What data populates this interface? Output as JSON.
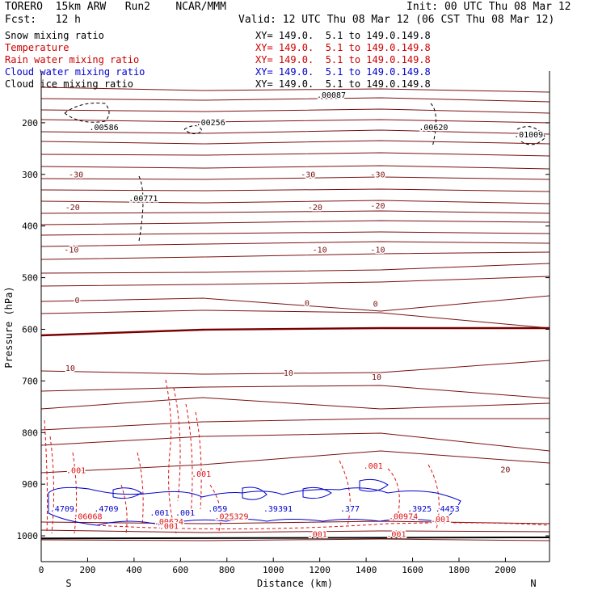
{
  "header": {
    "title_left": "TORERO  15km ARW   Run2    NCAR/MMM",
    "fcst": "Fcst:   12 h",
    "init": "Init: 00 UTC Thu 08 Mar 12",
    "valid": "Valid: 12 UTC Thu 08 Mar 12 (06 CST Thu 08 Mar 12)"
  },
  "legend": [
    {
      "name": "Snow mixing ratio",
      "xy": "XY= 149.0.  5.1 to 149.0.149.8",
      "color": "#000000"
    },
    {
      "name": "Temperature",
      "xy": "XY= 149.0.  5.1 to 149.0.149.8",
      "color": "#cc0000"
    },
    {
      "name": "Rain water mixing ratio",
      "xy": "XY= 149.0.  5.1 to 149.0.149.8",
      "color": "#cc0000"
    },
    {
      "name": "Cloud water mixing ratio",
      "xy": "XY= 149.0.  5.1 to 149.0.149.8",
      "color": "#0000cc"
    },
    {
      "name": "Cloud ice mixing ratio",
      "xy": "XY= 149.0.  5.1 to 149.0.149.8",
      "color": "#000000"
    }
  ],
  "colors": {
    "temperature": "#7a1010",
    "rain": "#dd1111",
    "cloud_water": "#0000cc",
    "ice": "#000000"
  },
  "chart_data": {
    "type": "line",
    "title": "",
    "xlabel": "Distance (km)",
    "ylabel": "Pressure (hPa)",
    "xlim": [
      0,
      2190
    ],
    "ylim": [
      1050,
      100
    ],
    "x_ticks": [
      0,
      200,
      400,
      600,
      800,
      1000,
      1200,
      1400,
      1600,
      1800,
      2000
    ],
    "y_ticks": [
      200,
      300,
      400,
      500,
      600,
      700,
      800,
      900,
      1000
    ],
    "end_labels": {
      "left": "S",
      "right": "N"
    },
    "temperature_contour_labels": [
      {
        "text": "-30",
        "x": 150,
        "p": 306
      },
      {
        "text": "-30",
        "x": 1150,
        "p": 306
      },
      {
        "text": "-30",
        "x": 1450,
        "p": 306
      },
      {
        "text": "-20",
        "x": 135,
        "p": 369
      },
      {
        "text": "-20",
        "x": 1180,
        "p": 369
      },
      {
        "text": "-20",
        "x": 1450,
        "p": 366
      },
      {
        "text": "-10",
        "x": 130,
        "p": 451
      },
      {
        "text": "-10",
        "x": 1200,
        "p": 451
      },
      {
        "text": "-10",
        "x": 1450,
        "p": 451
      },
      {
        "text": "0",
        "x": 155,
        "p": 549
      },
      {
        "text": "0",
        "x": 1145,
        "p": 555
      },
      {
        "text": "0",
        "x": 1440,
        "p": 556
      },
      {
        "text": "10",
        "x": 125,
        "p": 681
      },
      {
        "text": "10",
        "x": 1065,
        "p": 690
      },
      {
        "text": "10",
        "x": 1445,
        "p": 698
      },
      {
        "text": "20",
        "x": 2000,
        "p": 877
      }
    ],
    "snow_maxima": [
      {
        "text": ".00586",
        "x": 270,
        "p": 214
      },
      {
        "text": ".00256",
        "x": 730,
        "p": 205
      },
      {
        "text": ".00771",
        "x": 440,
        "p": 352
      },
      {
        "text": ".00087",
        "x": 1250,
        "p": 152
      },
      {
        "text": ".00620",
        "x": 1690,
        "p": 214
      },
      {
        "text": ".01009",
        "x": 2100,
        "p": 228
      }
    ],
    "rain_labels": [
      {
        "text": ".001",
        "x": 150,
        "p": 879
      },
      {
        "text": ".001",
        "x": 690,
        "p": 886
      },
      {
        "text": ".001",
        "x": 1430,
        "p": 870
      },
      {
        "text": ".06068",
        "x": 200,
        "p": 968
      },
      {
        "text": ".00624",
        "x": 550,
        "p": 978
      },
      {
        "text": ".025329",
        "x": 820,
        "p": 968
      },
      {
        "text": ".001",
        "x": 550,
        "p": 987
      },
      {
        "text": ".00974",
        "x": 1560,
        "p": 968
      },
      {
        "text": ".001",
        "x": 1720,
        "p": 973
      },
      {
        "text": ".001",
        "x": 1190,
        "p": 1002
      },
      {
        "text": ".001",
        "x": 1530,
        "p": 1002
      }
    ],
    "cloud_water_labels": [
      {
        "text": ".4709",
        "x": 280,
        "p": 953
      },
      {
        "text": ".001",
        "x": 510,
        "p": 961
      },
      {
        "text": ".001",
        "x": 620,
        "p": 961
      },
      {
        "text": ".059",
        "x": 760,
        "p": 953
      },
      {
        "text": ".39391",
        "x": 1020,
        "p": 953
      },
      {
        "text": ".377",
        "x": 1330,
        "p": 953
      },
      {
        "text": ".3925",
        "x": 1630,
        "p": 953
      },
      {
        "text": ".4453",
        "x": 1750,
        "p": 953
      },
      {
        "text": ".4709",
        "x": 90,
        "p": 953
      }
    ]
  }
}
